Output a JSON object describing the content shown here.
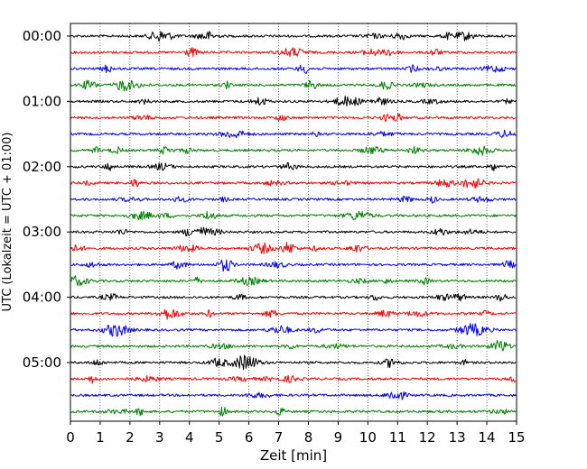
{
  "chart_data": {
    "type": "line",
    "title": "",
    "xlabel": "Zeit  [min]",
    "ylabel": "UTC (Lokalzeit = UTC + 01:00)",
    "xlim": [
      0,
      15
    ],
    "x_ticks": [
      "0",
      "1",
      "2",
      "3",
      "4",
      "5",
      "6",
      "7",
      "8",
      "9",
      "10",
      "11",
      "12",
      "13",
      "14",
      "15"
    ],
    "y_ticks": [
      "00:00",
      "01:00",
      "02:00",
      "03:00",
      "04:00",
      "05:00"
    ],
    "trace_count": 24,
    "trace_interval_min": 15,
    "trace_colors": [
      "#000000",
      "#ff0000",
      "#0000ff",
      "#008000"
    ],
    "grid": "vertical dotted lines at each minute",
    "legend": "none",
    "traces_start": [
      "00:00",
      "00:15",
      "00:30",
      "00:45",
      "01:00",
      "01:15",
      "01:30",
      "01:45",
      "02:00",
      "02:15",
      "02:30",
      "02:45",
      "03:00",
      "03:15",
      "03:30",
      "03:45",
      "04:00",
      "04:15",
      "04:30",
      "04:45",
      "05:00",
      "05:15",
      "05:30",
      "05:45"
    ]
  }
}
